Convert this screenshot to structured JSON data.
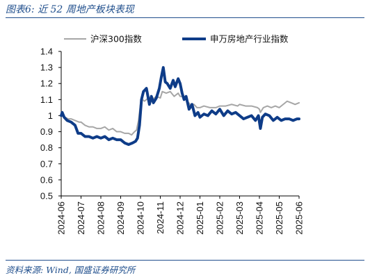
{
  "figure": {
    "title": "图表6:  近 52 周地产板块表现",
    "source": "资料来源: Wind, 国盛证券研究所"
  },
  "chart_data": {
    "type": "line",
    "title": "",
    "xlabel": "",
    "ylabel": "",
    "ylim": [
      0.5,
      1.4
    ],
    "yticks": [
      "0.5",
      "0.6",
      "0.7",
      "0.8",
      "0.9",
      "1",
      "1.1",
      "1.2",
      "1.3",
      "1.4"
    ],
    "xticks": [
      "2024-06",
      "2024-07",
      "2024-08",
      "2024-09",
      "2024-10",
      "2024-11",
      "2024-12",
      "2025-01",
      "2025-02",
      "2025-03",
      "2025-04",
      "2025-05",
      "2025-06"
    ],
    "grid": false,
    "legend_position": "top",
    "x_unit": "month index (0 = 2024-06)",
    "series": [
      {
        "name": "沪深300指数",
        "color": "#a6a6a6",
        "x": [
          0,
          0.1,
          0.2,
          0.35,
          0.5,
          0.7,
          0.9,
          1.0,
          1.2,
          1.4,
          1.6,
          1.8,
          2.0,
          2.2,
          2.4,
          2.6,
          2.8,
          3.0,
          3.2,
          3.4,
          3.55,
          3.7,
          3.8,
          3.9,
          4.0,
          4.1,
          4.2,
          4.4,
          4.6,
          4.8,
          5.0,
          5.1,
          5.3,
          5.5,
          5.7,
          5.9,
          6.0,
          6.15,
          6.3,
          6.5,
          6.7,
          6.85,
          7.0,
          7.2,
          7.5,
          7.8,
          8.0,
          8.3,
          8.6,
          8.9,
          9.0,
          9.3,
          9.6,
          9.9,
          10.0,
          10.05,
          10.2,
          10.4,
          10.6,
          10.8,
          11.0,
          11.2,
          11.4,
          11.6,
          11.8,
          12.0
        ],
        "values": [
          1.02,
          1.0,
          0.99,
          0.98,
          0.98,
          0.97,
          0.96,
          0.96,
          0.94,
          0.93,
          0.93,
          0.92,
          0.92,
          0.93,
          0.91,
          0.92,
          0.9,
          0.9,
          0.89,
          0.89,
          0.88,
          0.9,
          0.91,
          0.97,
          1.07,
          1.1,
          1.09,
          1.11,
          1.1,
          1.12,
          1.11,
          1.15,
          1.14,
          1.15,
          1.12,
          1.14,
          1.12,
          1.12,
          1.1,
          1.07,
          1.07,
          1.05,
          1.05,
          1.06,
          1.05,
          1.05,
          1.06,
          1.06,
          1.07,
          1.06,
          1.07,
          1.06,
          1.06,
          1.05,
          1.04,
          1.02,
          1.05,
          1.06,
          1.05,
          1.06,
          1.05,
          1.07,
          1.09,
          1.08,
          1.07,
          1.08
        ]
      },
      {
        "name": "申万房地产行业指数",
        "color": "#0e3c88",
        "x": [
          0,
          0.05,
          0.15,
          0.3,
          0.5,
          0.7,
          0.85,
          1.0,
          1.2,
          1.4,
          1.6,
          1.8,
          2.0,
          2.2,
          2.4,
          2.6,
          2.8,
          3.0,
          3.2,
          3.4,
          3.6,
          3.75,
          3.85,
          3.95,
          4.05,
          4.15,
          4.3,
          4.45,
          4.55,
          4.65,
          4.8,
          4.95,
          5.05,
          5.15,
          5.25,
          5.35,
          5.5,
          5.65,
          5.75,
          5.9,
          6.0,
          6.1,
          6.2,
          6.3,
          6.45,
          6.6,
          6.75,
          6.9,
          7.0,
          7.2,
          7.4,
          7.6,
          7.8,
          8.0,
          8.2,
          8.4,
          8.6,
          8.8,
          9.0,
          9.2,
          9.4,
          9.6,
          9.8,
          9.95,
          10.05,
          10.15,
          10.3,
          10.5,
          10.7,
          10.9,
          11.1,
          11.3,
          11.5,
          11.7,
          11.9,
          12.0
        ],
        "values": [
          1.0,
          1.02,
          0.99,
          0.97,
          0.96,
          0.94,
          0.89,
          0.89,
          0.87,
          0.87,
          0.86,
          0.87,
          0.86,
          0.87,
          0.85,
          0.86,
          0.85,
          0.85,
          0.83,
          0.82,
          0.83,
          0.84,
          0.86,
          0.94,
          1.1,
          1.15,
          1.17,
          1.07,
          1.12,
          1.08,
          1.11,
          1.17,
          1.24,
          1.3,
          1.21,
          1.2,
          1.17,
          1.22,
          1.18,
          1.23,
          1.2,
          1.14,
          1.1,
          1.12,
          1.04,
          1.07,
          1.0,
          1.02,
          0.99,
          1.01,
          1.0,
          1.03,
          1.01,
          1.04,
          1.0,
          1.03,
          1.01,
          1.02,
          1.0,
          0.98,
          0.99,
          1.0,
          0.97,
          1.0,
          0.92,
          0.99,
          1.01,
          1.0,
          0.97,
          0.99,
          0.97,
          0.98,
          0.98,
          0.97,
          0.98,
          0.98
        ]
      }
    ]
  }
}
